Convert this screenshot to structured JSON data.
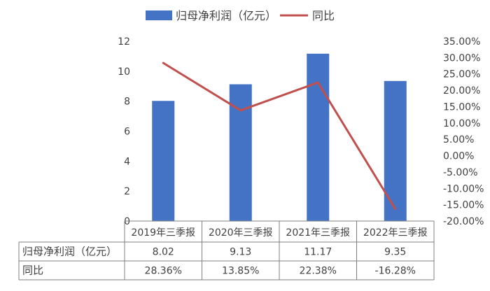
{
  "chart_data": {
    "type": "bar",
    "categories": [
      "2019年三季报",
      "2020年三季报",
      "2021年三季报",
      "2022年三季报"
    ],
    "series": [
      {
        "name": "归母净利润（亿元）",
        "type": "bar",
        "axis": "left",
        "color": "#4472C4",
        "values": [
          8.02,
          9.13,
          11.17,
          9.35
        ]
      },
      {
        "name": "同比",
        "type": "line",
        "axis": "right",
        "color": "#C0504D",
        "values": [
          28.36,
          13.85,
          22.38,
          -16.28
        ]
      }
    ],
    "left_axis": {
      "min": 0,
      "max": 12,
      "ticks": [
        "0",
        "2",
        "4",
        "6",
        "8",
        "10",
        "12"
      ]
    },
    "right_axis": {
      "min": -20,
      "max": 35,
      "ticks": [
        "-20.00%",
        "-15.00%",
        "-10.00%",
        "-5.00%",
        "0.00%",
        "5.00%",
        "10.00%",
        "15.00%",
        "20.00%",
        "25.00%",
        "30.00%",
        "35.00%"
      ]
    },
    "table": {
      "rows": [
        {
          "label": "归母净利润（亿元）",
          "cells": [
            "8.02",
            "9.13",
            "11.17",
            "9.35"
          ]
        },
        {
          "label": "同比",
          "cells": [
            "28.36%",
            "13.85%",
            "22.38%",
            "-16.28%"
          ]
        }
      ]
    },
    "legend_position": "top",
    "grid": false
  }
}
